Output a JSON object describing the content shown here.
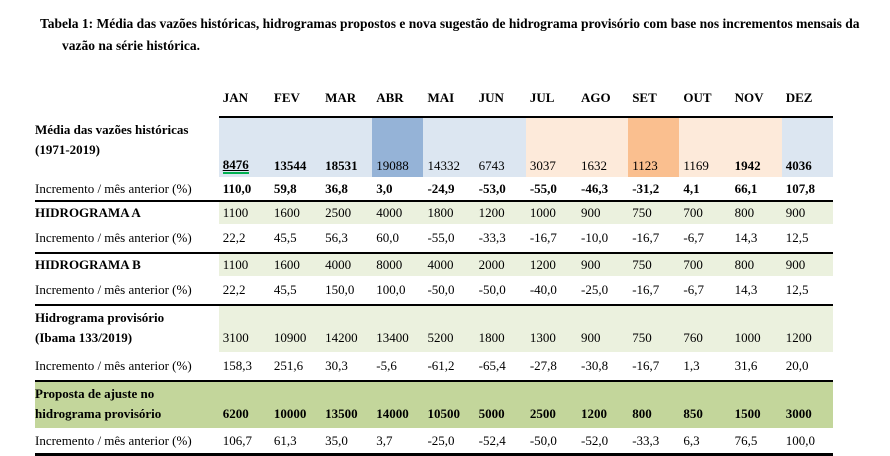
{
  "caption": {
    "line1": "Tabela 1: Média das vazões históricas, hidrogramas propostos e nova sugestão de hidrograma provisório com base nos incrementos mensais da",
    "line2": "vazão na série histórica."
  },
  "months": [
    "JAN",
    "FEV",
    "MAR",
    "ABR",
    "MAI",
    "JUN",
    "JUL",
    "AGO",
    "SET",
    "OUT",
    "NOV",
    "DEZ"
  ],
  "increment_label": "Incremento / mês anterior (%)",
  "rows": {
    "media": {
      "label_line1": "Média das vazões históricas",
      "label_line2": "(1971-2019)",
      "values": [
        "8476",
        "13544",
        "18531",
        "19088",
        "14332",
        "6743",
        "3037",
        "1632",
        "1123",
        "1169",
        "1942",
        "4036"
      ]
    },
    "media_inc": {
      "values": [
        "110,0",
        "59,8",
        "36,8",
        "3,0",
        "-24,9",
        "-53,0",
        "-55,0",
        "-46,3",
        "-31,2",
        "4,1",
        "66,1",
        "107,8"
      ]
    },
    "hidrograma_a": {
      "label": "HIDROGRAMA A",
      "values": [
        "1100",
        "1600",
        "2500",
        "4000",
        "1800",
        "1200",
        "1000",
        "900",
        "750",
        "700",
        "800",
        "900"
      ]
    },
    "hidrograma_a_inc": {
      "values": [
        "22,2",
        "45,5",
        "56,3",
        "60,0",
        "-55,0",
        "-33,3",
        "-16,7",
        "-10,0",
        "-16,7",
        "-6,7",
        "14,3",
        "12,5"
      ]
    },
    "hidrograma_b": {
      "label": "HIDROGRAMA B",
      "values": [
        "1100",
        "1600",
        "4000",
        "8000",
        "4000",
        "2000",
        "1200",
        "900",
        "750",
        "700",
        "800",
        "900"
      ]
    },
    "hidrograma_b_inc": {
      "values": [
        "22,2",
        "45,5",
        "150,0",
        "100,0",
        "-50,0",
        "-50,0",
        "-40,0",
        "-25,0",
        "-16,7",
        "-6,7",
        "14,3",
        "12,5"
      ]
    },
    "provisorio": {
      "label_line1": "Hidrograma provisório",
      "label_line2": "(Ibama 133/2019)",
      "values": [
        "3100",
        "10900",
        "14200",
        "13400",
        "5200",
        "1800",
        "1300",
        "900",
        "750",
        "760",
        "1000",
        "1200"
      ]
    },
    "provisorio_inc": {
      "values": [
        "158,3",
        "251,6",
        "30,3",
        "-5,6",
        "-61,2",
        "-65,4",
        "-27,8",
        "-30,8",
        "-16,7",
        "1,3",
        "31,6",
        "20,0"
      ]
    },
    "proposta": {
      "label_line1": "Proposta de ajuste no",
      "label_line2": "hidrograma provisório",
      "values": [
        "6200",
        "10000",
        "13500",
        "14000",
        "10500",
        "5000",
        "2500",
        "1200",
        "800",
        "850",
        "1500",
        "3000"
      ]
    },
    "proposta_inc": {
      "values": [
        "106,7",
        "61,3",
        "35,0",
        "3,7",
        "-25,0",
        "-52,4",
        "-50,0",
        "-52,0",
        "-33,3",
        "6,3",
        "76,5",
        "100,0"
      ]
    }
  },
  "colors": {
    "light_blue": "#dce6f1",
    "medium_blue": "#95b3d7",
    "light_orange": "#fdeada",
    "medium_orange": "#fabf8f",
    "light_green": "#ebf1de",
    "medium_green": "#c3d69b",
    "grammar_green": "#00b050"
  }
}
